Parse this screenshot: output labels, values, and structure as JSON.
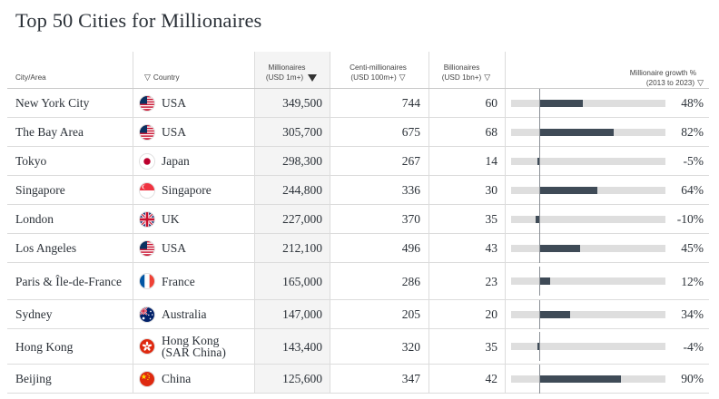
{
  "title": "Top 50 Cities for Millionaires",
  "headers": {
    "city": "City/Area",
    "country": "Country",
    "millionaires_line1": "Millionaires",
    "millionaires_line2": "(USD 1m+)",
    "centi_line1": "Centi-millionaires",
    "centi_line2": "(USD 100m+)",
    "bill_line1": "Billionaires",
    "bill_line2": "(USD 1bn+)",
    "growth_line1": "Millionaire growth %",
    "growth_line2": "(2013 to 2023)"
  },
  "colors": {
    "bar": "#3f4b57",
    "track": "#dedede"
  },
  "rows": [
    {
      "city": "New York City",
      "country": "USA",
      "flag": "usa-flag-icon",
      "millionaires": "349,500",
      "centi": "744",
      "billionaires": "60",
      "growth": 48,
      "growth_label": "48%"
    },
    {
      "city": "The Bay Area",
      "country": "USA",
      "flag": "usa-flag-icon",
      "millionaires": "305,700",
      "centi": "675",
      "billionaires": "68",
      "growth": 82,
      "growth_label": "82%"
    },
    {
      "city": "Tokyo",
      "country": "Japan",
      "flag": "japan-flag-icon",
      "millionaires": "298,300",
      "centi": "267",
      "billionaires": "14",
      "growth": -5,
      "growth_label": "-5%"
    },
    {
      "city": "Singapore",
      "country": "Singapore",
      "flag": "singapore-flag-icon",
      "millionaires": "244,800",
      "centi": "336",
      "billionaires": "30",
      "growth": 64,
      "growth_label": "64%"
    },
    {
      "city": "London",
      "country": "UK",
      "flag": "uk-flag-icon",
      "millionaires": "227,000",
      "centi": "370",
      "billionaires": "35",
      "growth": -10,
      "growth_label": "-10%"
    },
    {
      "city": "Los Angeles",
      "country": "USA",
      "flag": "usa-flag-icon",
      "millionaires": "212,100",
      "centi": "496",
      "billionaires": "43",
      "growth": 45,
      "growth_label": "45%"
    },
    {
      "city": "Paris & Île-de-France",
      "country": "France",
      "flag": "france-flag-icon",
      "millionaires": "165,000",
      "centi": "286",
      "billionaires": "23",
      "growth": 12,
      "growth_label": "12%"
    },
    {
      "city": "Sydney",
      "country": "Australia",
      "flag": "australia-flag-icon",
      "millionaires": "147,000",
      "centi": "205",
      "billionaires": "20",
      "growth": 34,
      "growth_label": "34%"
    },
    {
      "city": "Hong Kong",
      "country": "Hong Kong (SAR China)",
      "flag": "hong-kong-flag-icon",
      "millionaires": "143,400",
      "centi": "320",
      "billionaires": "35",
      "growth": -4,
      "growth_label": "-4%"
    },
    {
      "city": "Beijing",
      "country": "China",
      "flag": "china-flag-icon",
      "millionaires": "125,600",
      "centi": "347",
      "billionaires": "42",
      "growth": 90,
      "growth_label": "90%"
    }
  ]
}
